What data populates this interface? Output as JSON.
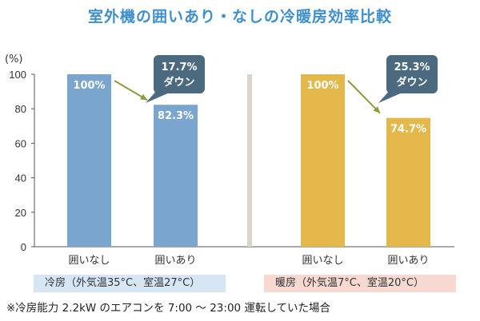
{
  "title": "室外機の囲いあり・なしの冷暖房効率比較",
  "colors": {
    "title": "#3f8fcc",
    "cooling_bar": "#7aa5cf",
    "heating_bar": "#e5b84b",
    "callout": "#4b6a80",
    "arrow": "#8f9a3d",
    "divider": "#d9d4cc",
    "cooling_caption_bg": "#d6e6f4",
    "heating_caption_bg": "#f7d9d2"
  },
  "chart_data": {
    "type": "bar",
    "ylabel": "(%)",
    "ylim": [
      0,
      100
    ],
    "yticks": [
      0,
      20,
      40,
      60,
      80,
      100
    ],
    "grid": false,
    "groups": [
      {
        "caption": "冷房（外気温35°C、室温27°C）",
        "categories": [
          "囲いなし",
          "囲いあり"
        ],
        "values": [
          100,
          82.3
        ],
        "value_labels": [
          "100%",
          "82.3%"
        ],
        "callout": [
          "17.7%",
          "ダウン"
        ]
      },
      {
        "caption": "暖房（外気温7°C、室温20°C）",
        "categories": [
          "囲いなし",
          "囲いあり"
        ],
        "values": [
          100,
          74.7
        ],
        "value_labels": [
          "100%",
          "74.7%"
        ],
        "callout": [
          "25.3%",
          "ダウン"
        ]
      }
    ]
  },
  "footnote": "※冷房能力 2.2kW のエアコンを 7:00 ～ 23:00 運転していた場合"
}
